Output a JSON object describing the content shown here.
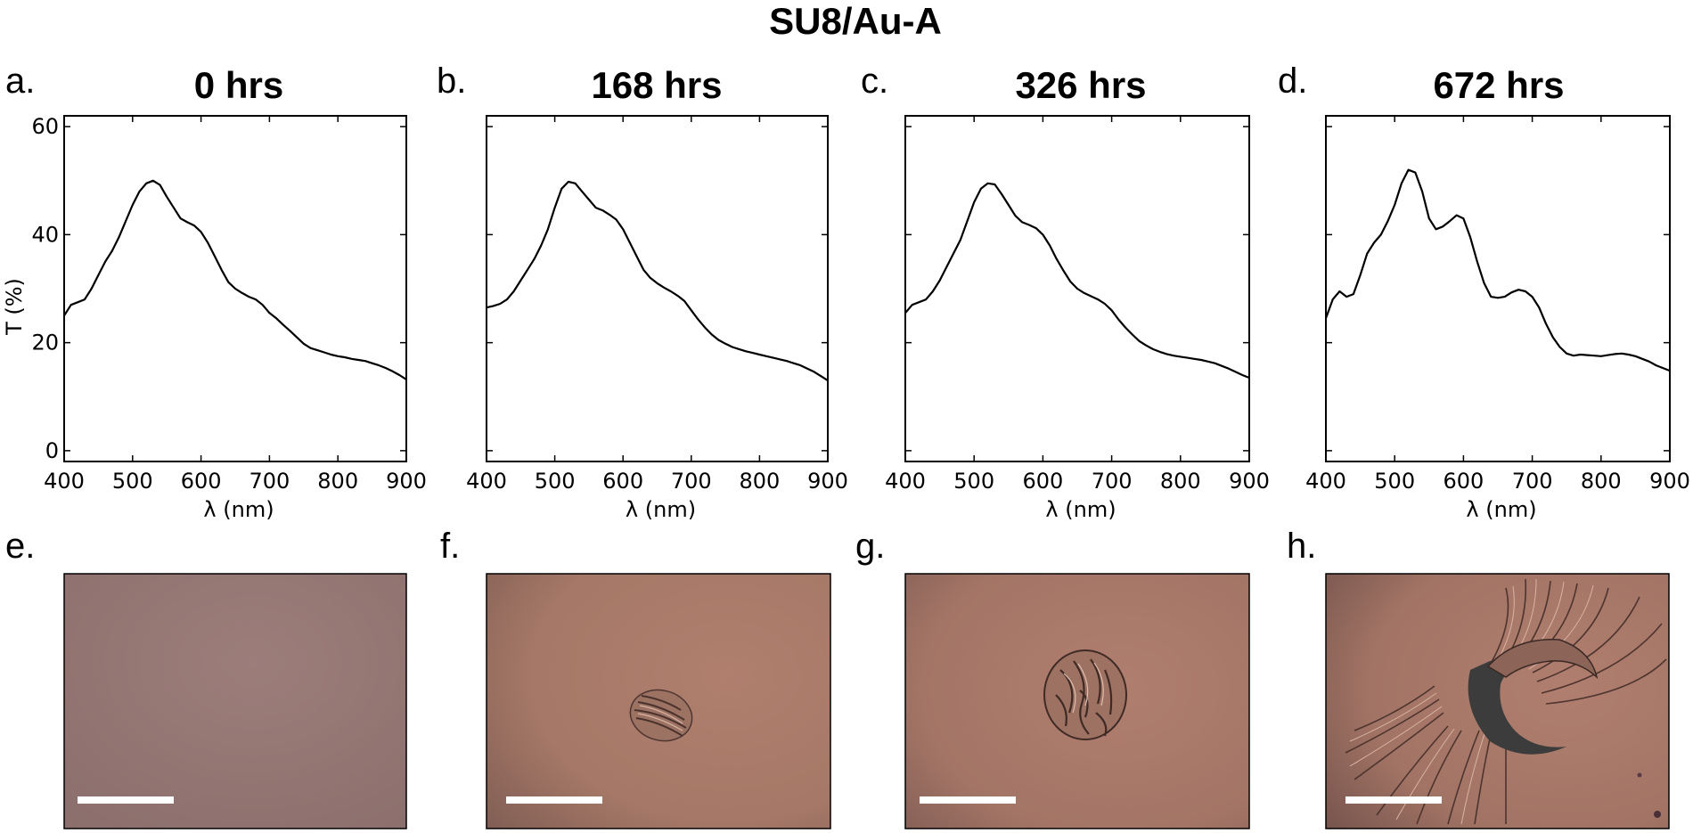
{
  "figure_title": "SU8/Au-A",
  "chart_data": [
    {
      "type": "line",
      "panel_label": "a.",
      "title": "0 hrs",
      "xlabel": "λ (nm)",
      "ylabel": "T (%)",
      "xlim": [
        400,
        900
      ],
      "ylim": [
        -2,
        62
      ],
      "xticks": [
        "400",
        "500",
        "600",
        "700",
        "800",
        "900"
      ],
      "yticks": [
        "0",
        "20",
        "40",
        "60"
      ],
      "grid": false,
      "series": [
        {
          "x": [
            400,
            410,
            420,
            430,
            440,
            450,
            460,
            470,
            480,
            490,
            500,
            510,
            520,
            530,
            540,
            550,
            560,
            570,
            580,
            590,
            600,
            610,
            620,
            630,
            640,
            650,
            660,
            670,
            680,
            690,
            700,
            710,
            720,
            730,
            740,
            750,
            760,
            770,
            780,
            790,
            800,
            810,
            820,
            830,
            840,
            850,
            860,
            870,
            880,
            890,
            900
          ],
          "y": [
            25,
            27,
            27.5,
            28,
            30,
            32.5,
            35,
            37,
            39.5,
            42.5,
            45.5,
            48,
            49.5,
            50,
            49.2,
            47,
            45,
            43,
            42.3,
            41.7,
            40.5,
            38.5,
            36,
            33.5,
            31.2,
            30,
            29.2,
            28.5,
            28,
            27,
            25.5,
            24.5,
            23.3,
            22.2,
            21,
            19.8,
            19,
            18.6,
            18.2,
            17.8,
            17.5,
            17.3,
            17,
            16.8,
            16.6,
            16.2,
            15.8,
            15.3,
            14.7,
            14,
            13.2
          ]
        }
      ]
    },
    {
      "type": "line",
      "panel_label": "b.",
      "title": "168 hrs",
      "xlabel": "λ (nm)",
      "ylabel": "",
      "xlim": [
        400,
        900
      ],
      "ylim": [
        -2,
        62
      ],
      "xticks": [
        "400",
        "500",
        "600",
        "700",
        "800",
        "900"
      ],
      "yticks": [],
      "grid": false,
      "series": [
        {
          "x": [
            400,
            410,
            420,
            430,
            440,
            450,
            460,
            470,
            480,
            490,
            500,
            510,
            520,
            530,
            540,
            550,
            560,
            570,
            580,
            590,
            600,
            610,
            620,
            630,
            640,
            650,
            660,
            670,
            680,
            690,
            700,
            710,
            720,
            730,
            740,
            750,
            760,
            770,
            780,
            790,
            800,
            810,
            820,
            830,
            840,
            850,
            860,
            870,
            880,
            890,
            900
          ],
          "y": [
            26.5,
            26.8,
            27.2,
            28,
            29.5,
            31.5,
            33.5,
            35.5,
            38,
            41,
            45,
            48.5,
            49.8,
            49.5,
            48,
            46.5,
            45,
            44.5,
            43.7,
            42.8,
            41,
            38.5,
            36,
            33.5,
            32,
            31,
            30.2,
            29.5,
            28.7,
            27.7,
            26,
            24.3,
            22.8,
            21.5,
            20.5,
            19.8,
            19.2,
            18.8,
            18.4,
            18.1,
            17.8,
            17.5,
            17.2,
            16.9,
            16.6,
            16.2,
            15.8,
            15.2,
            14.6,
            13.8,
            13
          ]
        }
      ]
    },
    {
      "type": "line",
      "panel_label": "c.",
      "title": "326 hrs",
      "xlabel": "λ (nm)",
      "ylabel": "",
      "xlim": [
        400,
        900
      ],
      "ylim": [
        -2,
        62
      ],
      "xticks": [
        "400",
        "500",
        "600",
        "700",
        "800",
        "900"
      ],
      "yticks": [],
      "grid": false,
      "series": [
        {
          "x": [
            400,
            410,
            420,
            430,
            440,
            450,
            460,
            470,
            480,
            490,
            500,
            510,
            520,
            530,
            540,
            550,
            560,
            570,
            580,
            590,
            600,
            610,
            620,
            630,
            640,
            650,
            660,
            670,
            680,
            690,
            700,
            710,
            720,
            730,
            740,
            750,
            760,
            770,
            780,
            790,
            800,
            810,
            820,
            830,
            840,
            850,
            860,
            870,
            880,
            890,
            900
          ],
          "y": [
            25.5,
            27,
            27.5,
            28,
            29.5,
            31.5,
            34,
            36.5,
            39,
            42.5,
            46,
            48.5,
            49.5,
            49.3,
            47.5,
            45.5,
            43.5,
            42.3,
            41.8,
            41.2,
            40,
            38,
            35.5,
            33.3,
            31.3,
            30,
            29.2,
            28.6,
            28,
            27.2,
            26,
            24.3,
            22.8,
            21.5,
            20.3,
            19.5,
            18.8,
            18.3,
            17.9,
            17.6,
            17.4,
            17.2,
            17,
            16.8,
            16.5,
            16.2,
            15.7,
            15.2,
            14.6,
            14,
            13.5
          ]
        }
      ]
    },
    {
      "type": "line",
      "panel_label": "d.",
      "title": "672 hrs",
      "xlabel": "λ (nm)",
      "ylabel": "",
      "xlim": [
        400,
        900
      ],
      "ylim": [
        -2,
        62
      ],
      "xticks": [
        "400",
        "500",
        "600",
        "700",
        "800",
        "900"
      ],
      "yticks": [],
      "grid": false,
      "series": [
        {
          "x": [
            400,
            410,
            420,
            430,
            440,
            450,
            460,
            470,
            480,
            490,
            500,
            510,
            520,
            530,
            540,
            550,
            560,
            570,
            580,
            590,
            600,
            610,
            620,
            630,
            640,
            650,
            660,
            670,
            680,
            690,
            700,
            710,
            720,
            730,
            740,
            750,
            760,
            770,
            780,
            790,
            800,
            810,
            820,
            830,
            840,
            850,
            860,
            870,
            880,
            890,
            900
          ],
          "y": [
            24.5,
            28,
            29.5,
            28.5,
            29,
            32.5,
            36.5,
            38.5,
            40,
            42.5,
            45.5,
            49.5,
            52,
            51.5,
            48,
            43,
            41,
            41.5,
            42.5,
            43.6,
            43,
            39.5,
            35,
            31,
            28.5,
            28.3,
            28.5,
            29.3,
            29.8,
            29.5,
            28.5,
            26.5,
            23.5,
            21,
            19.2,
            18,
            17.6,
            17.8,
            17.7,
            17.6,
            17.5,
            17.7,
            17.9,
            18,
            17.8,
            17.5,
            17,
            16.5,
            15.8,
            15.3,
            14.8
          ]
        }
      ]
    }
  ],
  "images": [
    {
      "panel_label": "e.",
      "scale_bar": true
    },
    {
      "panel_label": "f.",
      "scale_bar": true
    },
    {
      "panel_label": "g.",
      "scale_bar": true
    },
    {
      "panel_label": "h.",
      "scale_bar": true
    }
  ],
  "colors": {
    "line": "#000000",
    "film_light": "#a77a72",
    "film_dark": "#7a5a55",
    "scale_bar": "#ffffff",
    "hole": "#3c3c3c"
  }
}
